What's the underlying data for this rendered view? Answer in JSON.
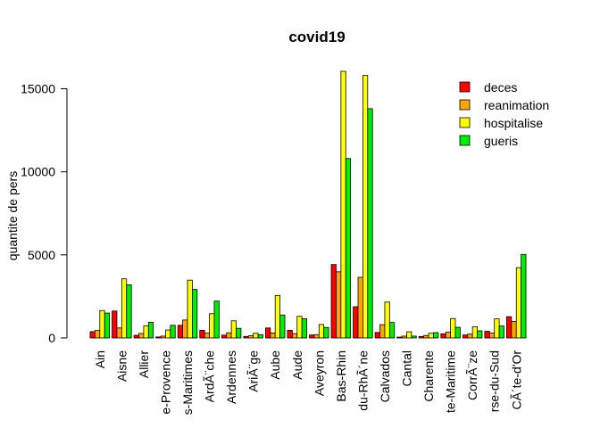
{
  "chart_data": {
    "type": "bar",
    "title": "covid19",
    "xlabel": "",
    "ylabel": "quantite de pers",
    "ylim": [
      0,
      16000
    ],
    "yticks": [
      0,
      5000,
      10000,
      15000
    ],
    "grid": false,
    "legend_position": "top-right",
    "categories": [
      "Ain",
      "Aisne",
      "Allier",
      "e-Provence",
      "s-Maritimes",
      "ArdÃ¨che",
      "Ardennes",
      "AriÃ¨ge",
      "Aube",
      "Aude",
      "Aveyron",
      "Bas-Rhin",
      "du-RhÃ´ne",
      "Calvados",
      "Cantal",
      "Charente",
      "te-Maritime",
      "CorrÃ¨ze",
      "rse-du-Sud",
      "CÃ´te-d'Or"
    ],
    "series": [
      {
        "name": "deces",
        "color": "#ff0000",
        "values": [
          380,
          1620,
          160,
          60,
          760,
          460,
          170,
          90,
          600,
          460,
          180,
          4420,
          1880,
          330,
          50,
          90,
          250,
          180,
          400,
          1280
        ]
      },
      {
        "name": "reanimation",
        "color": "#ffa500",
        "values": [
          450,
          600,
          270,
          110,
          1080,
          290,
          310,
          130,
          300,
          260,
          200,
          3980,
          3650,
          800,
          110,
          150,
          350,
          230,
          290,
          1000
        ]
      },
      {
        "name": "hospitalise",
        "color": "#ffff00",
        "values": [
          1650,
          3560,
          720,
          480,
          3480,
          1460,
          1030,
          280,
          2560,
          1300,
          810,
          16050,
          15800,
          2160,
          370,
          280,
          1170,
          680,
          1150,
          4230
        ]
      },
      {
        "name": "gueris",
        "color": "#00ee00",
        "values": [
          1500,
          3200,
          940,
          760,
          2920,
          2220,
          580,
          200,
          1380,
          1160,
          630,
          10800,
          13800,
          930,
          110,
          320,
          640,
          430,
          720,
          5030
        ]
      }
    ]
  }
}
